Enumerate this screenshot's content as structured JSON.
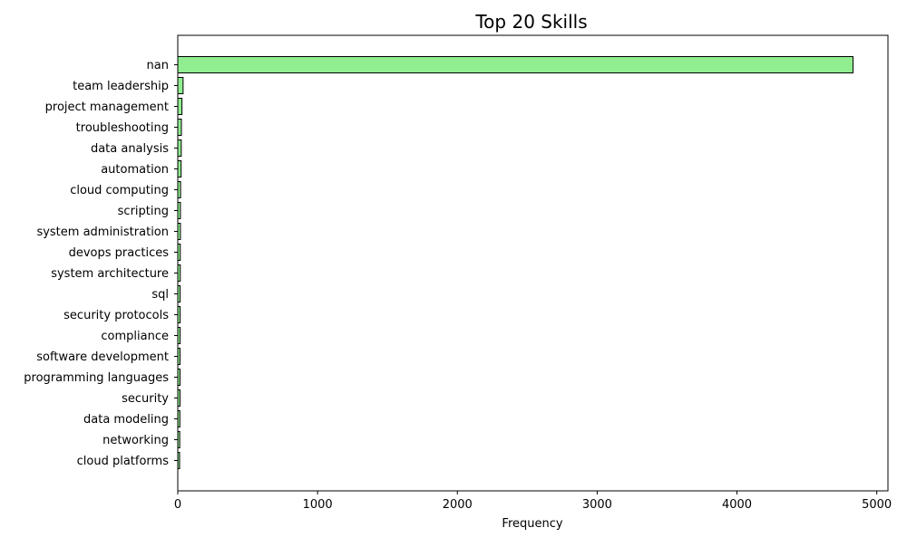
{
  "chart_data": {
    "type": "bar",
    "orientation": "horizontal",
    "title": "Top 20 Skills",
    "xlabel": "Frequency",
    "ylabel": "",
    "xlim": [
      0,
      5080
    ],
    "x_ticks": [
      0,
      1000,
      2000,
      3000,
      4000,
      5000
    ],
    "grid": false,
    "legend": "none",
    "colors": {
      "bar_fill": "#90ee90",
      "bar_edge": "#000000"
    },
    "categories": [
      "nan",
      "team leadership",
      "project management",
      "troubleshooting",
      "data analysis",
      "automation",
      "cloud computing",
      "scripting",
      "system administration",
      "devops practices",
      "system architecture",
      "sql",
      "security protocols",
      "compliance",
      "software development",
      "programming languages",
      "security",
      "data modeling",
      "networking",
      "cloud platforms"
    ],
    "values": [
      4830,
      38,
      30,
      26,
      25,
      24,
      20,
      19,
      19,
      18,
      18,
      17,
      17,
      17,
      16,
      16,
      16,
      15,
      14,
      13
    ]
  }
}
